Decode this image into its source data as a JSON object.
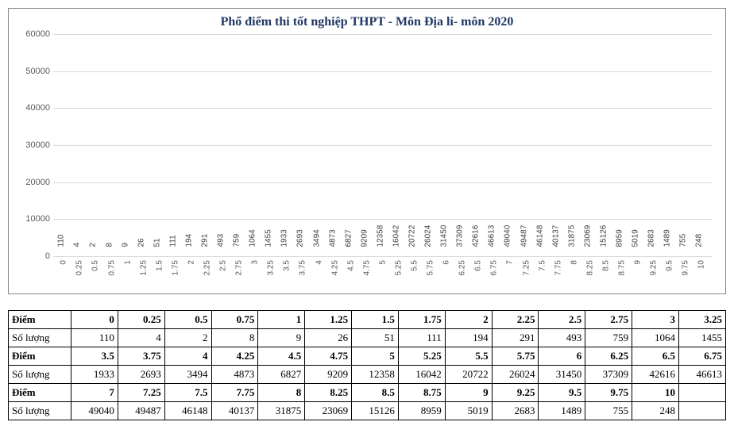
{
  "chart": {
    "type": "bar",
    "title": "Phổ điểm thi tốt nghiệp THPT - Môn Địa lí- môn 2020",
    "title_fontsize": 16,
    "title_color": "#1f3864",
    "ylim": [
      0,
      60000
    ],
    "ytick_step": 10000,
    "yticks": [
      "0",
      "10000",
      "20000",
      "30000",
      "40000",
      "50000",
      "60000"
    ],
    "bar_color": "#4472c4",
    "grid_color": "#d9d9d9",
    "axis_color": "#bfbfbf",
    "background_color": "#ffffff",
    "label_fontsize": 10,
    "data": [
      {
        "score": "0",
        "count": 110
      },
      {
        "score": "0.25",
        "count": 4
      },
      {
        "score": "0.5",
        "count": 2
      },
      {
        "score": "0.75",
        "count": 8
      },
      {
        "score": "1",
        "count": 9
      },
      {
        "score": "1.25",
        "count": 26
      },
      {
        "score": "1.5",
        "count": 51
      },
      {
        "score": "1.75",
        "count": 111
      },
      {
        "score": "2",
        "count": 194
      },
      {
        "score": "2.25",
        "count": 291
      },
      {
        "score": "2.5",
        "count": 493
      },
      {
        "score": "2.75",
        "count": 759
      },
      {
        "score": "3",
        "count": 1064
      },
      {
        "score": "3.25",
        "count": 1455
      },
      {
        "score": "3.5",
        "count": 1933
      },
      {
        "score": "3.75",
        "count": 2693
      },
      {
        "score": "4",
        "count": 3494
      },
      {
        "score": "4.25",
        "count": 4873
      },
      {
        "score": "4.5",
        "count": 6827
      },
      {
        "score": "4.75",
        "count": 9209
      },
      {
        "score": "5",
        "count": 12358
      },
      {
        "score": "5.25",
        "count": 16042
      },
      {
        "score": "5.5",
        "count": 20722
      },
      {
        "score": "5.75",
        "count": 26024
      },
      {
        "score": "6",
        "count": 31450
      },
      {
        "score": "6.25",
        "count": 37309
      },
      {
        "score": "6.5",
        "count": 42616
      },
      {
        "score": "6.75",
        "count": 46613
      },
      {
        "score": "7",
        "count": 49040
      },
      {
        "score": "7.25",
        "count": 49487
      },
      {
        "score": "7.5",
        "count": 46148
      },
      {
        "score": "7.75",
        "count": 40137
      },
      {
        "score": "8",
        "count": 31875
      },
      {
        "score": "8.25",
        "count": 23069
      },
      {
        "score": "8.5",
        "count": 15126
      },
      {
        "score": "8.75",
        "count": 8959
      },
      {
        "score": "9",
        "count": 5019
      },
      {
        "score": "9.25",
        "count": 2683
      },
      {
        "score": "9.5",
        "count": 1489
      },
      {
        "score": "9.75",
        "count": 755
      },
      {
        "score": "10",
        "count": 248
      }
    ]
  },
  "table": {
    "row_labels": {
      "score": "Điểm",
      "count": "Số lượng"
    },
    "groups": [
      {
        "scores": [
          "0",
          "0.25",
          "0.5",
          "0.75",
          "1",
          "1.25",
          "1.5",
          "1.75",
          "2",
          "2.25",
          "2.5",
          "2.75",
          "3",
          "3.25"
        ],
        "counts": [
          "110",
          "4",
          "2",
          "8",
          "9",
          "26",
          "51",
          "111",
          "194",
          "291",
          "493",
          "759",
          "1064",
          "1455"
        ]
      },
      {
        "scores": [
          "3.5",
          "3.75",
          "4",
          "4.25",
          "4.5",
          "4.75",
          "5",
          "5.25",
          "5.5",
          "5.75",
          "6",
          "6.25",
          "6.5",
          "6.75"
        ],
        "counts": [
          "1933",
          "2693",
          "3494",
          "4873",
          "6827",
          "9209",
          "12358",
          "16042",
          "20722",
          "26024",
          "31450",
          "37309",
          "42616",
          "46613"
        ]
      },
      {
        "scores": [
          "7",
          "7.25",
          "7.5",
          "7.75",
          "8",
          "8.25",
          "8.5",
          "8.75",
          "9",
          "9.25",
          "9.5",
          "9.75",
          "10",
          ""
        ],
        "counts": [
          "49040",
          "49487",
          "46148",
          "40137",
          "31875",
          "23069",
          "15126",
          "8959",
          "5019",
          "2683",
          "1489",
          "755",
          "248",
          ""
        ]
      }
    ]
  }
}
